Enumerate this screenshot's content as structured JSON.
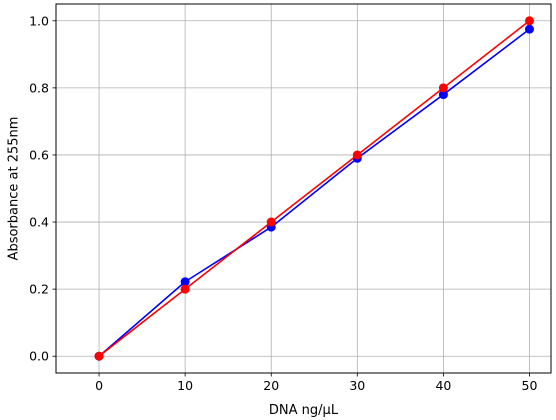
{
  "chart_data": {
    "type": "line",
    "title": "",
    "xlabel": "DNA ng/μL",
    "ylabel": "Absorbance at 255nm",
    "xlim": [
      -5,
      52.5
    ],
    "ylim": [
      -0.05,
      1.05
    ],
    "x_ticks": [
      0,
      10,
      20,
      30,
      40,
      50
    ],
    "y_ticks": [
      0.0,
      0.2,
      0.4,
      0.6,
      0.8,
      1.0
    ],
    "x_tick_labels": [
      "0",
      "10",
      "20",
      "30",
      "40",
      "50"
    ],
    "y_tick_labels": [
      "0.0",
      "0.2",
      "0.4",
      "0.6",
      "0.8",
      "1.0"
    ],
    "grid": true,
    "legend": "none",
    "series": [
      {
        "color": "#0000ff",
        "marker": "circle",
        "x": [
          0,
          10,
          20,
          30,
          40,
          50
        ],
        "y": [
          0.0,
          0.222,
          0.385,
          0.59,
          0.78,
          0.975
        ]
      },
      {
        "color": "#ff0000",
        "marker": "circle",
        "x": [
          0,
          10,
          20,
          30,
          40,
          50
        ],
        "y": [
          0.0,
          0.2,
          0.4,
          0.6,
          0.8,
          1.0
        ]
      }
    ]
  }
}
